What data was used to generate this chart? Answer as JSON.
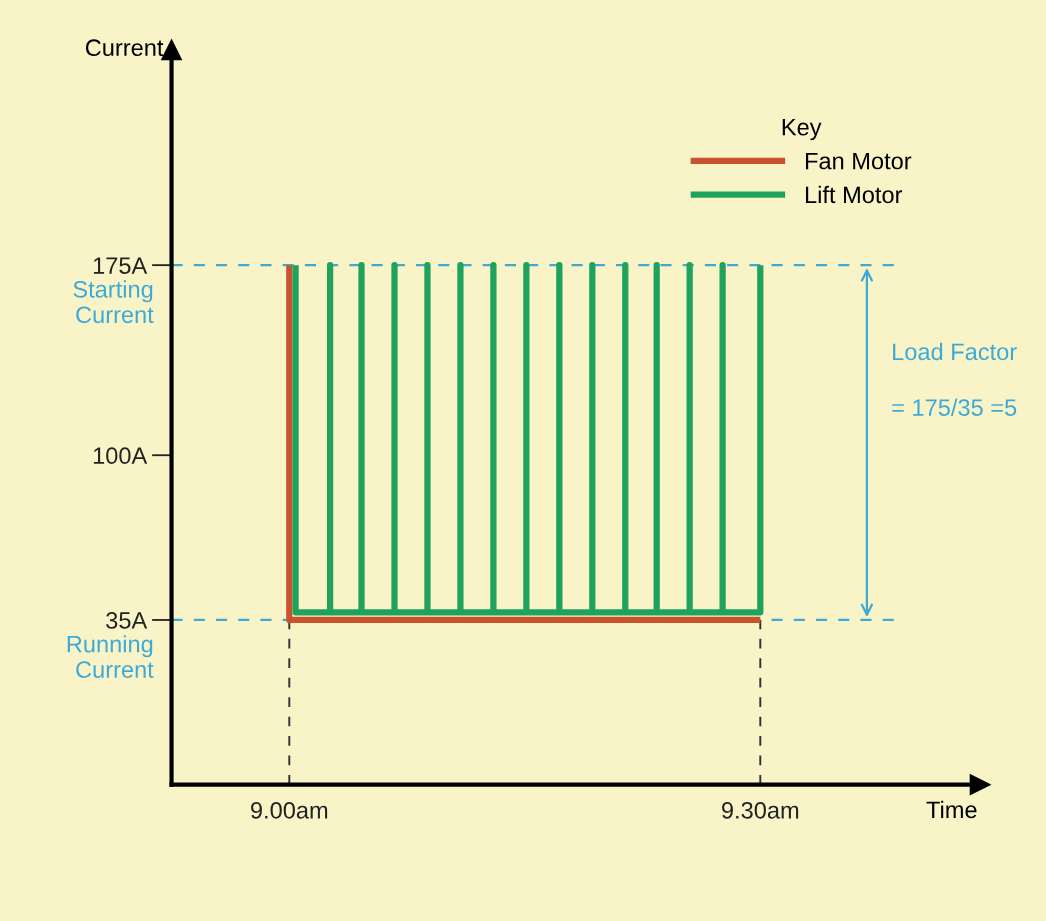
{
  "chart_data": {
    "type": "line",
    "xlabel": "Time",
    "ylabel": "Current",
    "legend_title": "Key",
    "legend": "top right",
    "xlim": [
      8.925,
      9.44
    ],
    "ylim": [
      -30,
      260
    ],
    "xticks": [
      {
        "value": 9.0,
        "label": "9.00am"
      },
      {
        "value": 9.3,
        "label": "9.30am"
      }
    ],
    "yticks": [
      {
        "value": 35,
        "label": "35A"
      },
      {
        "value": 100,
        "label": "100A"
      },
      {
        "value": 175,
        "label": "175A"
      }
    ],
    "grid": false,
    "marker": "none",
    "line_style": "solid",
    "series": [
      {
        "name": "Fan Motor",
        "color": "#c8532e",
        "x": [
          9.0,
          9.0,
          9.3
        ],
        "values": [
          175,
          35,
          35
        ]
      },
      {
        "name": "Lift Motor",
        "color": "#1fa35c",
        "x": [
          9.004,
          9.004,
          9.026,
          9.026,
          9.026,
          9.046,
          9.046,
          9.046,
          9.067,
          9.067,
          9.067,
          9.088,
          9.088,
          9.088,
          9.109,
          9.109,
          9.109,
          9.13,
          9.13,
          9.13,
          9.151,
          9.151,
          9.151,
          9.172,
          9.172,
          9.172,
          9.193,
          9.193,
          9.193,
          9.214,
          9.214,
          9.214,
          9.234,
          9.234,
          9.234,
          9.255,
          9.255,
          9.255,
          9.276,
          9.276,
          9.276,
          9.3,
          9.3
        ],
        "values": [
          175,
          38,
          38,
          175,
          38,
          38,
          175,
          38,
          38,
          175,
          38,
          38,
          175,
          38,
          38,
          175,
          38,
          38,
          175,
          38,
          38,
          175,
          38,
          38,
          175,
          38,
          38,
          175,
          38,
          38,
          175,
          38,
          38,
          175,
          38,
          38,
          175,
          38,
          38,
          175,
          38,
          38,
          175
        ]
      }
    ],
    "ref_lines": [
      {
        "axis": "y",
        "value": 175,
        "label": "Starting Current",
        "color": "#3fa9d6",
        "line_style": "dashed"
      },
      {
        "axis": "y",
        "value": 35,
        "label": "Running Current",
        "color": "#3fa9d6",
        "line_style": "dashed"
      },
      {
        "axis": "x",
        "value": 9.0,
        "color": "#333333",
        "line_style": "dashed"
      },
      {
        "axis": "x",
        "value": 9.3,
        "color": "#333333",
        "line_style": "dashed"
      }
    ],
    "annotations": [
      "Load Factor",
      "= 175/35 =5"
    ]
  }
}
